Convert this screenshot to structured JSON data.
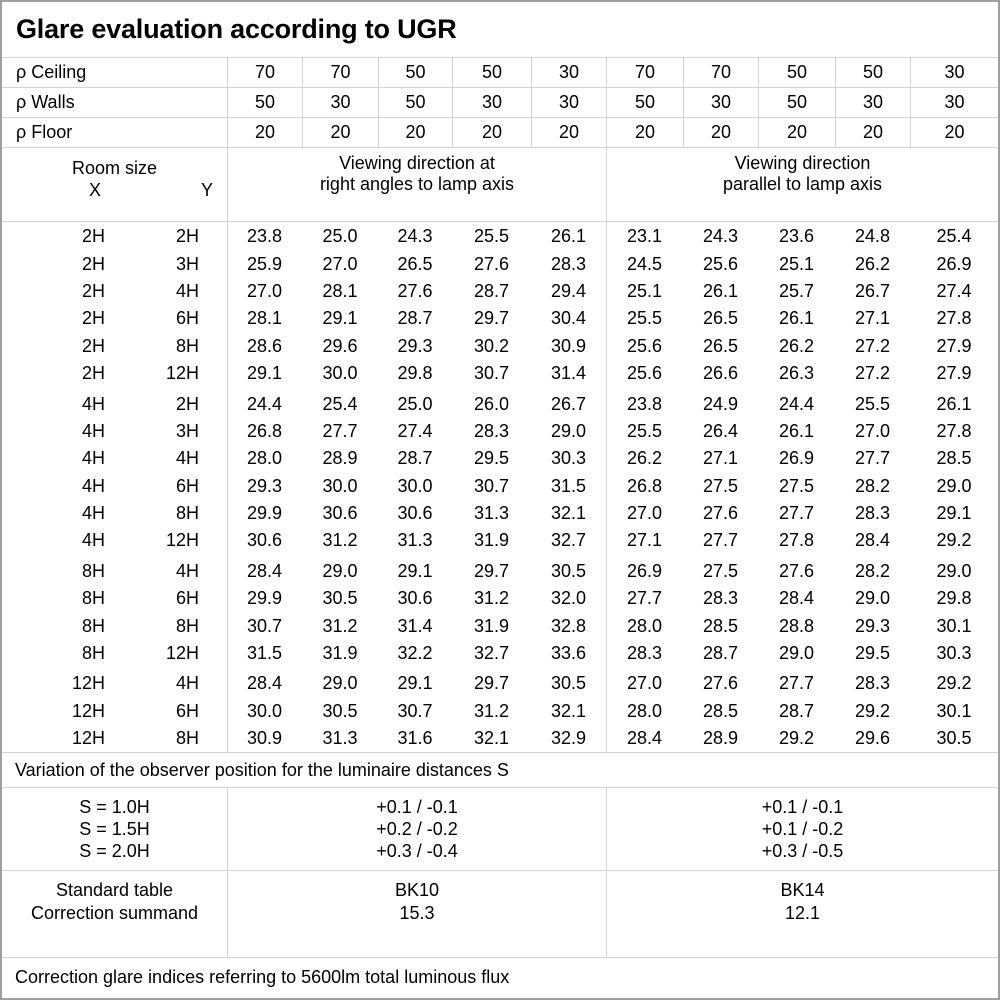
{
  "title": "Glare evaluation according to UGR",
  "colors": {
    "grid_line": "#d3d3d3",
    "outer_border": "#9e9e9e",
    "text": "#000000",
    "background": "#ffffff"
  },
  "reflectance_rows": [
    {
      "label": "ρ Ceiling",
      "values": [
        "70",
        "70",
        "50",
        "50",
        "30",
        "70",
        "70",
        "50",
        "50",
        "30"
      ]
    },
    {
      "label": "ρ Walls",
      "values": [
        "50",
        "30",
        "50",
        "30",
        "30",
        "50",
        "30",
        "50",
        "30",
        "30"
      ]
    },
    {
      "label": "ρ Floor",
      "values": [
        "20",
        "20",
        "20",
        "20",
        "20",
        "20",
        "20",
        "20",
        "20",
        "20"
      ]
    }
  ],
  "header": {
    "room_size_label": "Room size",
    "x_label": "X",
    "y_label": "Y",
    "group1_line1": "Viewing direction at",
    "group1_line2": "right angles to lamp axis",
    "group2_line1": "Viewing direction",
    "group2_line2": "parallel to lamp axis"
  },
  "blocks": [
    [
      [
        "2H",
        "2H",
        "23.8",
        "25.0",
        "24.3",
        "25.5",
        "26.1",
        "23.1",
        "24.3",
        "23.6",
        "24.8",
        "25.4"
      ],
      [
        "2H",
        "3H",
        "25.9",
        "27.0",
        "26.5",
        "27.6",
        "28.3",
        "24.5",
        "25.6",
        "25.1",
        "26.2",
        "26.9"
      ],
      [
        "2H",
        "4H",
        "27.0",
        "28.1",
        "27.6",
        "28.7",
        "29.4",
        "25.1",
        "26.1",
        "25.7",
        "26.7",
        "27.4"
      ],
      [
        "2H",
        "6H",
        "28.1",
        "29.1",
        "28.7",
        "29.7",
        "30.4",
        "25.5",
        "26.5",
        "26.1",
        "27.1",
        "27.8"
      ],
      [
        "2H",
        "8H",
        "28.6",
        "29.6",
        "29.3",
        "30.2",
        "30.9",
        "25.6",
        "26.5",
        "26.2",
        "27.2",
        "27.9"
      ],
      [
        "2H",
        "12H",
        "29.1",
        "30.0",
        "29.8",
        "30.7",
        "31.4",
        "25.6",
        "26.6",
        "26.3",
        "27.2",
        "27.9"
      ]
    ],
    [
      [
        "4H",
        "2H",
        "24.4",
        "25.4",
        "25.0",
        "26.0",
        "26.7",
        "23.8",
        "24.9",
        "24.4",
        "25.5",
        "26.1"
      ],
      [
        "4H",
        "3H",
        "26.8",
        "27.7",
        "27.4",
        "28.3",
        "29.0",
        "25.5",
        "26.4",
        "26.1",
        "27.0",
        "27.8"
      ],
      [
        "4H",
        "4H",
        "28.0",
        "28.9",
        "28.7",
        "29.5",
        "30.3",
        "26.2",
        "27.1",
        "26.9",
        "27.7",
        "28.5"
      ],
      [
        "4H",
        "6H",
        "29.3",
        "30.0",
        "30.0",
        "30.7",
        "31.5",
        "26.8",
        "27.5",
        "27.5",
        "28.2",
        "29.0"
      ],
      [
        "4H",
        "8H",
        "29.9",
        "30.6",
        "30.6",
        "31.3",
        "32.1",
        "27.0",
        "27.6",
        "27.7",
        "28.3",
        "29.1"
      ],
      [
        "4H",
        "12H",
        "30.6",
        "31.2",
        "31.3",
        "31.9",
        "32.7",
        "27.1",
        "27.7",
        "27.8",
        "28.4",
        "29.2"
      ]
    ],
    [
      [
        "8H",
        "4H",
        "28.4",
        "29.0",
        "29.1",
        "29.7",
        "30.5",
        "26.9",
        "27.5",
        "27.6",
        "28.2",
        "29.0"
      ],
      [
        "8H",
        "6H",
        "29.9",
        "30.5",
        "30.6",
        "31.2",
        "32.0",
        "27.7",
        "28.3",
        "28.4",
        "29.0",
        "29.8"
      ],
      [
        "8H",
        "8H",
        "30.7",
        "31.2",
        "31.4",
        "31.9",
        "32.8",
        "28.0",
        "28.5",
        "28.8",
        "29.3",
        "30.1"
      ],
      [
        "8H",
        "12H",
        "31.5",
        "31.9",
        "32.2",
        "32.7",
        "33.6",
        "28.3",
        "28.7",
        "29.0",
        "29.5",
        "30.3"
      ]
    ],
    [
      [
        "12H",
        "4H",
        "28.4",
        "29.0",
        "29.1",
        "29.7",
        "30.5",
        "27.0",
        "27.6",
        "27.7",
        "28.3",
        "29.2"
      ],
      [
        "12H",
        "6H",
        "30.0",
        "30.5",
        "30.7",
        "31.2",
        "32.1",
        "28.0",
        "28.5",
        "28.7",
        "29.2",
        "30.1"
      ],
      [
        "12H",
        "8H",
        "30.9",
        "31.3",
        "31.6",
        "32.1",
        "32.9",
        "28.4",
        "28.9",
        "29.2",
        "29.6",
        "30.5"
      ]
    ]
  ],
  "variation_note": "Variation of the observer position for the luminaire distances S",
  "s_block": {
    "labels": [
      "S = 1.0H",
      "S = 1.5H",
      "S = 2.0H"
    ],
    "right_angles": [
      "+0.1 / -0.1",
      "+0.2 / -0.2",
      "+0.3 / -0.4"
    ],
    "parallel": [
      "+0.1 / -0.1",
      "+0.1 / -0.2",
      "+0.3 / -0.5"
    ]
  },
  "standard_block": {
    "row_labels": [
      "Standard table",
      "Correction summand"
    ],
    "right_angles": [
      "BK10",
      "15.3"
    ],
    "parallel": [
      "BK14",
      "12.1"
    ]
  },
  "footer_note": "Correction glare indices referring to 5600lm total luminous flux"
}
